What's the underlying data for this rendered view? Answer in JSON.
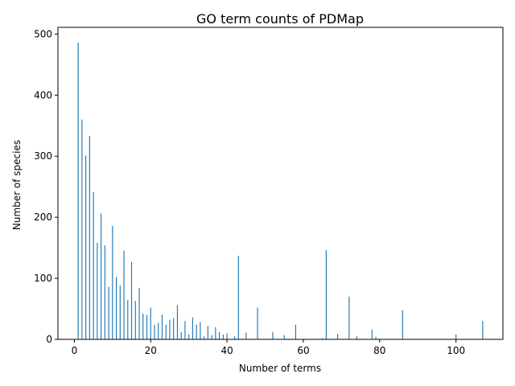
{
  "chart_data": {
    "type": "bar",
    "title": "GO term counts of PDMap",
    "xlabel": "Number of terms",
    "ylabel": "Number of species",
    "xlim": [
      -4.3,
      112.3
    ],
    "ylim": [
      0,
      511
    ],
    "xticks": [
      0,
      20,
      40,
      60,
      80,
      100
    ],
    "yticks": [
      0,
      100,
      200,
      300,
      400,
      500
    ],
    "grid": false,
    "bar_color": "#1f77b4",
    "x": [
      1,
      2,
      3,
      4,
      5,
      6,
      7,
      8,
      9,
      10,
      11,
      12,
      13,
      14,
      15,
      16,
      17,
      18,
      19,
      20,
      21,
      22,
      23,
      24,
      25,
      26,
      27,
      28,
      29,
      30,
      31,
      32,
      33,
      34,
      35,
      36,
      37,
      38,
      39,
      40,
      42,
      43,
      45,
      48,
      52,
      55,
      58,
      65,
      66,
      69,
      72,
      74,
      78,
      79,
      86,
      100,
      107
    ],
    "values": [
      486,
      360,
      301,
      333,
      241,
      158,
      206,
      154,
      86,
      186,
      102,
      88,
      145,
      64,
      127,
      63,
      84,
      42,
      40,
      52,
      24,
      27,
      40,
      24,
      32,
      35,
      56,
      12,
      30,
      8,
      36,
      24,
      28,
      5,
      22,
      7,
      20,
      12,
      8,
      10,
      5,
      137,
      11,
      52,
      12,
      7,
      24,
      2,
      146,
      9,
      70,
      5,
      16,
      4,
      48,
      8,
      30
    ]
  }
}
